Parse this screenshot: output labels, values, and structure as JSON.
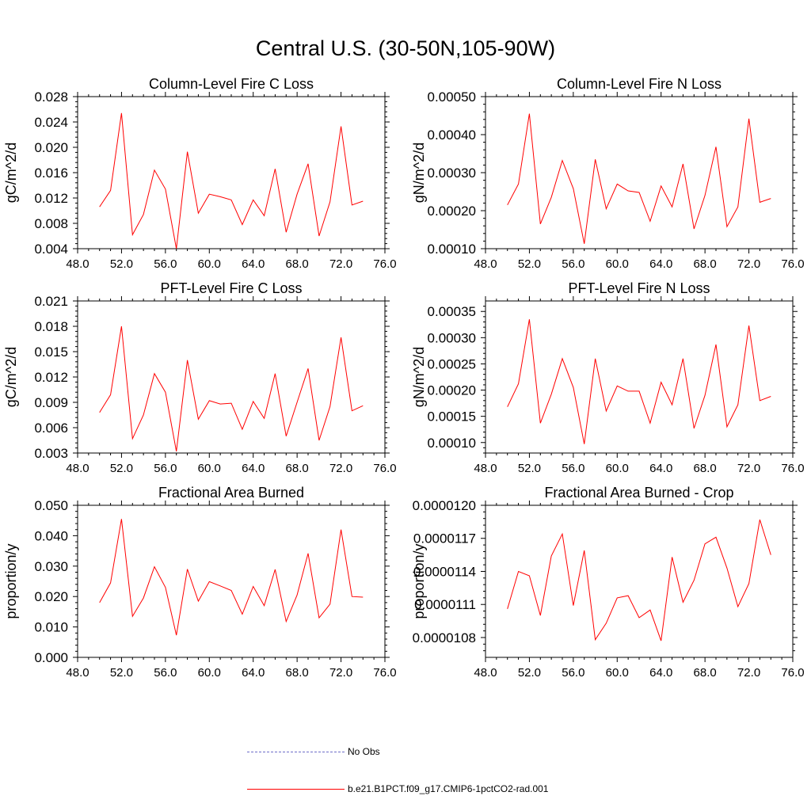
{
  "title": "Central U.S. (30-50N,105-90W)",
  "legend": {
    "items": [
      {
        "label": "No Obs",
        "color": "#6d6dc9",
        "style": "dashed"
      },
      {
        "label": "b.e21.B1PCT.f09_g17.CMIP6-1pctCO2-rad.001",
        "color": "#ff0000",
        "style": "solid"
      }
    ]
  },
  "chart_data": [
    {
      "type": "line",
      "title": "Column-Level Fire C Loss",
      "ylabel": "gC/m^2/d",
      "xlim": [
        48,
        76
      ],
      "xticks": [
        "48.0",
        "52.0",
        "56.0",
        "60.0",
        "64.0",
        "68.0",
        "72.0",
        "76.0"
      ],
      "ylim": [
        0.004,
        0.028
      ],
      "yticks": [
        "0.004",
        "0.008",
        "0.012",
        "0.016",
        "0.020",
        "0.024",
        "0.028"
      ],
      "x": [
        50,
        51,
        52,
        53,
        54,
        55,
        56,
        57,
        58,
        59,
        60,
        61,
        62,
        63,
        64,
        65,
        66,
        67,
        68,
        69,
        70,
        71,
        72,
        73,
        74
      ],
      "series": [
        {
          "color": "#ff0000",
          "values": [
            0.0106,
            0.0132,
            0.0254,
            0.0062,
            0.0094,
            0.0164,
            0.0134,
            0.004,
            0.0193,
            0.0096,
            0.0126,
            0.0122,
            0.0117,
            0.0078,
            0.0117,
            0.0092,
            0.0166,
            0.0066,
            0.0126,
            0.0174,
            0.006,
            0.0114,
            0.0233,
            0.0109,
            0.0115
          ]
        }
      ]
    },
    {
      "type": "line",
      "title": "Column-Level Fire N Loss",
      "ylabel": "gN/m^2/d",
      "xlim": [
        48,
        76
      ],
      "xticks": [
        "48.0",
        "52.0",
        "56.0",
        "60.0",
        "64.0",
        "68.0",
        "72.0",
        "76.0"
      ],
      "ylim": [
        0.0001,
        0.0005
      ],
      "yticks": [
        "0.00010",
        "0.00020",
        "0.00030",
        "0.00040",
        "0.00050"
      ],
      "x": [
        50,
        51,
        52,
        53,
        54,
        55,
        56,
        57,
        58,
        59,
        60,
        61,
        62,
        63,
        64,
        65,
        66,
        67,
        68,
        69,
        70,
        71,
        72,
        73,
        74
      ],
      "series": [
        {
          "color": "#ff0000",
          "values": [
            0.000215,
            0.00027,
            0.000455,
            0.000165,
            0.000235,
            0.000332,
            0.000258,
            0.000113,
            0.000335,
            0.000205,
            0.00027,
            0.000252,
            0.000248,
            0.000172,
            0.000265,
            0.00021,
            0.000323,
            0.000152,
            0.00024,
            0.000368,
            0.000158,
            0.00021,
            0.000442,
            0.000222,
            0.000232
          ]
        }
      ]
    },
    {
      "type": "line",
      "title": "PFT-Level Fire C Loss",
      "ylabel": "gC/m^2/d",
      "xlim": [
        48,
        76
      ],
      "xticks": [
        "48.0",
        "52.0",
        "56.0",
        "60.0",
        "64.0",
        "68.0",
        "72.0",
        "76.0"
      ],
      "ylim": [
        0.003,
        0.021
      ],
      "yticks": [
        "0.003",
        "0.006",
        "0.009",
        "0.012",
        "0.015",
        "0.018",
        "0.021"
      ],
      "x": [
        50,
        51,
        52,
        53,
        54,
        55,
        56,
        57,
        58,
        59,
        60,
        61,
        62,
        63,
        64,
        65,
        66,
        67,
        68,
        69,
        70,
        71,
        72,
        73,
        74
      ],
      "series": [
        {
          "color": "#ff0000",
          "values": [
            0.0078,
            0.0099,
            0.018,
            0.0047,
            0.0075,
            0.0124,
            0.0102,
            0.0032,
            0.014,
            0.007,
            0.0092,
            0.0088,
            0.0089,
            0.0058,
            0.0091,
            0.0071,
            0.0124,
            0.005,
            0.009,
            0.013,
            0.0045,
            0.0085,
            0.0167,
            0.008,
            0.0086
          ]
        }
      ]
    },
    {
      "type": "line",
      "title": "PFT-Level Fire N Loss",
      "ylabel": "gN/m^2/d",
      "xlim": [
        48,
        76
      ],
      "xticks": [
        "48.0",
        "52.0",
        "56.0",
        "60.0",
        "64.0",
        "68.0",
        "72.0",
        "76.0"
      ],
      "ylim": [
        8e-05,
        0.00037
      ],
      "yticks": [
        "0.00010",
        "0.00015",
        "0.00020",
        "0.00025",
        "0.00030",
        "0.00035"
      ],
      "x": [
        50,
        51,
        52,
        53,
        54,
        55,
        56,
        57,
        58,
        59,
        60,
        61,
        62,
        63,
        64,
        65,
        66,
        67,
        68,
        69,
        70,
        71,
        72,
        73,
        74
      ],
      "series": [
        {
          "color": "#ff0000",
          "values": [
            0.000168,
            0.000212,
            0.000335,
            0.000137,
            0.000192,
            0.00026,
            0.000205,
            9.7e-05,
            0.00026,
            0.00016,
            0.000208,
            0.000198,
            0.000198,
            0.000137,
            0.000215,
            0.000172,
            0.00026,
            0.000127,
            0.00019,
            0.000287,
            0.00013,
            0.000172,
            0.000323,
            0.00018,
            0.000188
          ]
        }
      ]
    },
    {
      "type": "line",
      "title": "Fractional Area Burned",
      "ylabel": "proportion/y",
      "xlim": [
        48,
        76
      ],
      "xticks": [
        "48.0",
        "52.0",
        "56.0",
        "60.0",
        "64.0",
        "68.0",
        "72.0",
        "76.0"
      ],
      "ylim": [
        0,
        0.05
      ],
      "yticks": [
        "0.000",
        "0.010",
        "0.020",
        "0.030",
        "0.040",
        "0.050"
      ],
      "x": [
        50,
        51,
        52,
        53,
        54,
        55,
        56,
        57,
        58,
        59,
        60,
        61,
        62,
        63,
        64,
        65,
        66,
        67,
        68,
        69,
        70,
        71,
        72,
        73,
        74
      ],
      "series": [
        {
          "color": "#ff0000",
          "values": [
            0.018,
            0.0245,
            0.0455,
            0.0135,
            0.0195,
            0.0298,
            0.023,
            0.0073,
            0.029,
            0.0185,
            0.0249,
            0.0235,
            0.022,
            0.0142,
            0.0233,
            0.017,
            0.0289,
            0.0118,
            0.0205,
            0.0342,
            0.013,
            0.0175,
            0.042,
            0.02,
            0.0198
          ]
        }
      ]
    },
    {
      "type": "line",
      "title": "Fractional Area Burned - Crop",
      "ylabel": "proportion/y",
      "xlim": [
        48,
        76
      ],
      "xticks": [
        "48.0",
        "52.0",
        "56.0",
        "60.0",
        "64.0",
        "68.0",
        "72.0",
        "76.0"
      ],
      "ylim": [
        1.062e-05,
        1.2e-05
      ],
      "yticks": [
        "0.0000108",
        "0.0000111",
        "0.0000114",
        "0.0000117",
        "0.0000120"
      ],
      "x": [
        50,
        51,
        52,
        53,
        54,
        55,
        56,
        57,
        58,
        59,
        60,
        61,
        62,
        63,
        64,
        65,
        66,
        67,
        68,
        69,
        70,
        71,
        72,
        73,
        74
      ],
      "series": [
        {
          "color": "#ff0000",
          "values": [
            1.106e-05,
            1.14e-05,
            1.136e-05,
            1.1e-05,
            1.154e-05,
            1.174e-05,
            1.109e-05,
            1.159e-05,
            1.078e-05,
            1.093e-05,
            1.116e-05,
            1.118e-05,
            1.098e-05,
            1.105e-05,
            1.077e-05,
            1.153e-05,
            1.112e-05,
            1.132e-05,
            1.165e-05,
            1.171e-05,
            1.143e-05,
            1.108e-05,
            1.129e-05,
            1.187e-05,
            1.155e-05
          ]
        }
      ]
    }
  ]
}
